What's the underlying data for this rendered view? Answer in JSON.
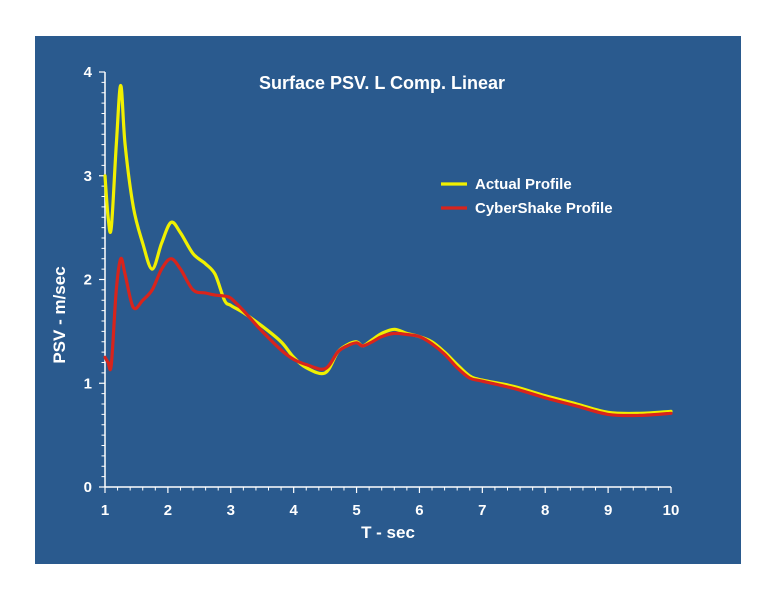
{
  "chart_data": {
    "type": "line",
    "title": "Surface PSV.  L Comp.  Linear",
    "xlabel": "T - sec",
    "ylabel": "PSV - m/sec",
    "xlim": [
      1,
      10
    ],
    "ylim": [
      0,
      4
    ],
    "x_ticks": [
      "1",
      "2",
      "3",
      "4",
      "5",
      "6",
      "7",
      "8",
      "9",
      "10"
    ],
    "y_ticks": [
      "0",
      "1",
      "2",
      "3",
      "4"
    ],
    "grid": false,
    "legend_position": "top-right",
    "series": [
      {
        "name": "Actual Profile",
        "color": "#f0f000",
        "x": [
          1.0,
          1.05,
          1.1,
          1.18,
          1.25,
          1.32,
          1.45,
          1.6,
          1.75,
          1.9,
          2.05,
          2.2,
          2.4,
          2.6,
          2.75,
          2.9,
          3.0,
          3.2,
          3.5,
          3.8,
          4.0,
          4.2,
          4.5,
          4.7,
          4.85,
          5.0,
          5.1,
          5.25,
          5.4,
          5.6,
          5.8,
          6.0,
          6.2,
          6.4,
          6.6,
          6.8,
          7.0,
          7.5,
          8.0,
          8.5,
          9.0,
          9.5,
          10.0
        ],
        "y": [
          3.0,
          2.6,
          2.5,
          3.3,
          3.87,
          3.3,
          2.7,
          2.35,
          2.1,
          2.35,
          2.55,
          2.45,
          2.25,
          2.15,
          2.05,
          1.8,
          1.75,
          1.68,
          1.55,
          1.4,
          1.25,
          1.15,
          1.1,
          1.3,
          1.37,
          1.4,
          1.36,
          1.42,
          1.48,
          1.52,
          1.48,
          1.45,
          1.4,
          1.3,
          1.18,
          1.07,
          1.03,
          0.97,
          0.88,
          0.8,
          0.72,
          0.71,
          0.73
        ]
      },
      {
        "name": "CyberShake Profile",
        "color": "#d8241c",
        "x": [
          1.0,
          1.05,
          1.1,
          1.18,
          1.25,
          1.32,
          1.45,
          1.6,
          1.75,
          1.9,
          2.05,
          2.2,
          2.4,
          2.6,
          2.75,
          2.9,
          3.0,
          3.2,
          3.5,
          3.8,
          4.0,
          4.2,
          4.5,
          4.7,
          4.85,
          5.0,
          5.1,
          5.25,
          5.4,
          5.6,
          5.8,
          6.0,
          6.2,
          6.4,
          6.6,
          6.8,
          7.0,
          7.5,
          8.0,
          8.5,
          9.0,
          9.5,
          10.0
        ],
        "y": [
          1.25,
          1.2,
          1.18,
          1.9,
          2.2,
          2.05,
          1.73,
          1.8,
          1.9,
          2.1,
          2.2,
          2.1,
          1.9,
          1.87,
          1.85,
          1.84,
          1.82,
          1.7,
          1.5,
          1.32,
          1.23,
          1.18,
          1.14,
          1.3,
          1.36,
          1.39,
          1.36,
          1.4,
          1.45,
          1.48,
          1.47,
          1.45,
          1.38,
          1.28,
          1.15,
          1.05,
          1.02,
          0.95,
          0.86,
          0.78,
          0.7,
          0.69,
          0.71
        ]
      }
    ]
  }
}
